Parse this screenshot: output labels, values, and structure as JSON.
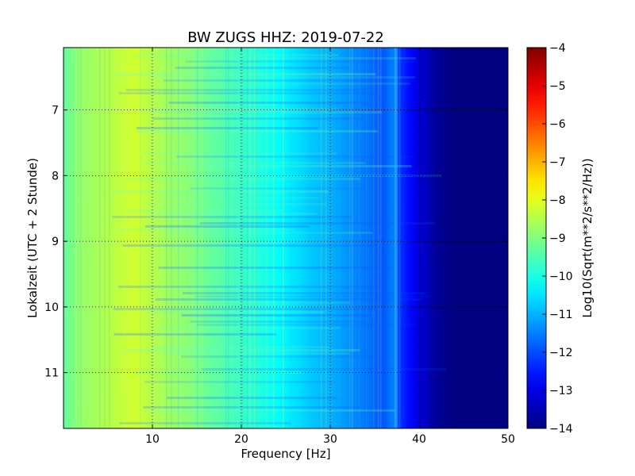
{
  "chart_data": {
    "type": "heatmap",
    "title": "BW ZUGS HHZ: 2019-07-22",
    "xlabel": "Frequency [Hz]",
    "ylabel": "Lokalzeit (UTC + 2 Stunde)",
    "xlim": [
      0,
      50
    ],
    "ylim": [
      6.05,
      11.85
    ],
    "y_inverted": true,
    "xticks": [
      10,
      20,
      30,
      40,
      50
    ],
    "yticks": [
      7,
      8,
      9,
      10,
      11
    ],
    "grid": true,
    "colormap": "jet",
    "colorbar": {
      "label": "Log10(Sqrt(m**2/s**2/Hz))",
      "min": -14,
      "max": -4,
      "ticks": [
        -4,
        -5,
        -6,
        -7,
        -8,
        -9,
        -10,
        -11,
        -12,
        -13,
        -14
      ]
    },
    "frequency_profile": {
      "frequency_hz": [
        0,
        2,
        4,
        6,
        8,
        10,
        12,
        14,
        16,
        18,
        20,
        22,
        24,
        26,
        28,
        30,
        32,
        34,
        36,
        37,
        38,
        39,
        40,
        42,
        44,
        50
      ],
      "log10_amplitude": [
        -9.3,
        -8.8,
        -8.6,
        -8.4,
        -8.2,
        -8.5,
        -8.7,
        -8.9,
        -9.2,
        -9.4,
        -9.7,
        -9.9,
        -10.2,
        -10.5,
        -10.8,
        -11.0,
        -11.3,
        -11.6,
        -11.9,
        -11.5,
        -12.3,
        -12.7,
        -13.1,
        -13.8,
        -14.0,
        -14.0
      ]
    }
  }
}
